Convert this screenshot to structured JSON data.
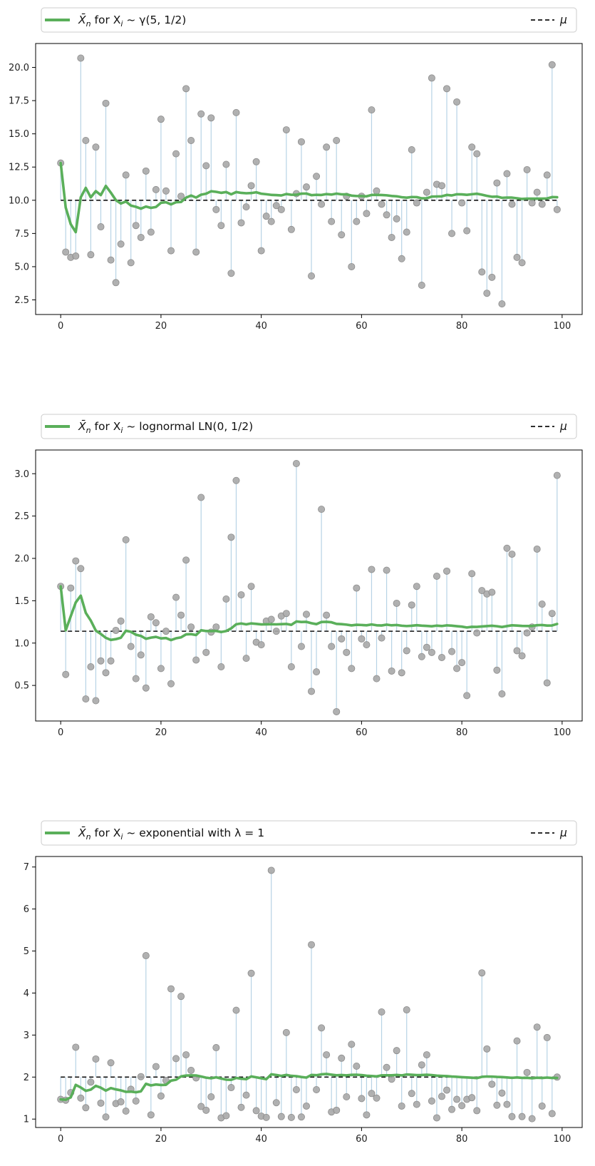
{
  "colors": {
    "mean_line": "#5aaf5a",
    "mu_line": "#111111",
    "points": "#a9a9a9",
    "points_edge": "#8c8c8c",
    "stems": "#b7d3e5",
    "axes": "#000000"
  },
  "chart_data": [
    {
      "type": "line",
      "title": "",
      "legend": {
        "mean_label_rest": " for X",
        "mean_label_dist": " ~ γ(5, 1/2)",
        "mu_label": "μ",
        "placement": "top"
      },
      "xlim": [
        -5,
        104
      ],
      "ylim": [
        1.4,
        21.8
      ],
      "xticks": [
        0,
        20,
        40,
        60,
        80,
        100
      ],
      "yticks": [
        2.5,
        5.0,
        7.5,
        10.0,
        12.5,
        15.0,
        17.5,
        20.0
      ],
      "ytick_labels": [
        "2.5",
        "5.0",
        "7.5",
        "10.0",
        "12.5",
        "15.0",
        "17.5",
        "20.0"
      ],
      "mu": 10.0,
      "samples": [
        12.8,
        6.1,
        5.7,
        5.8,
        20.7,
        14.5,
        5.9,
        14.0,
        8.0,
        17.3,
        5.5,
        3.8,
        6.7,
        11.9,
        5.3,
        8.1,
        7.2,
        12.2,
        7.6,
        10.8,
        16.1,
        10.7,
        6.2,
        13.5,
        10.3,
        18.4,
        14.5,
        6.1,
        16.5,
        12.6,
        16.2,
        9.3,
        8.1,
        12.7,
        4.5,
        16.6,
        8.3,
        9.5,
        11.1,
        12.9,
        6.2,
        8.8,
        8.4,
        9.6,
        9.3,
        15.3,
        7.8,
        10.5,
        14.4,
        11.0,
        4.3,
        11.8,
        9.7,
        14.0,
        8.4,
        14.5,
        7.4,
        10.3,
        5.0,
        8.4,
        10.3,
        9.0,
        16.8,
        10.7,
        9.7,
        8.9,
        7.2,
        8.6,
        5.6,
        7.6,
        13.8,
        9.8,
        3.6,
        10.6,
        19.2,
        11.2,
        11.1,
        18.4,
        7.5,
        17.4,
        9.8,
        7.7,
        14.0,
        13.5,
        4.6,
        3.0,
        4.2,
        11.3,
        2.2,
        12.0,
        9.7,
        5.7,
        5.3,
        12.3,
        9.8,
        10.6,
        9.7,
        11.9,
        20.2,
        9.3
      ]
    },
    {
      "type": "line",
      "title": "",
      "legend": {
        "mean_label_rest": " for X",
        "mean_label_dist": " ~ lognormal LN(0, 1/2)",
        "mu_label": "μ",
        "placement": "top"
      },
      "xlim": [
        -5,
        104
      ],
      "ylim": [
        0.08,
        3.28
      ],
      "xticks": [
        0,
        20,
        40,
        60,
        80,
        100
      ],
      "yticks": [
        0.5,
        1.0,
        1.5,
        2.0,
        2.5,
        3.0
      ],
      "ytick_labels": [
        "0.5",
        "1.0",
        "1.5",
        "2.0",
        "2.5",
        "3.0"
      ],
      "mu": 1.14,
      "samples": [
        1.67,
        0.63,
        1.65,
        1.97,
        1.88,
        0.34,
        0.72,
        0.32,
        0.79,
        0.65,
        0.79,
        1.15,
        1.26,
        2.22,
        0.96,
        0.58,
        0.86,
        0.47,
        1.31,
        1.24,
        0.7,
        1.14,
        0.52,
        1.54,
        1.33,
        1.98,
        1.19,
        0.8,
        2.72,
        0.89,
        1.13,
        1.19,
        0.72,
        1.52,
        2.25,
        2.92,
        1.57,
        0.82,
        1.67,
        1.01,
        0.98,
        1.26,
        1.28,
        1.14,
        1.32,
        1.35,
        0.72,
        3.12,
        0.96,
        1.34,
        0.43,
        0.66,
        2.58,
        1.33,
        0.96,
        0.19,
        1.05,
        0.89,
        0.7,
        1.65,
        1.05,
        0.98,
        1.87,
        0.58,
        1.06,
        1.86,
        0.67,
        1.47,
        0.65,
        0.91,
        1.45,
        1.67,
        0.84,
        0.95,
        0.89,
        1.79,
        0.83,
        1.85,
        0.9,
        0.7,
        0.77,
        0.38,
        1.82,
        1.12,
        1.62,
        1.58,
        1.6,
        0.68,
        0.4,
        2.12,
        2.05,
        0.91,
        0.85,
        1.12,
        1.19,
        2.11,
        1.46,
        0.53,
        1.35,
        2.98
      ]
    },
    {
      "type": "line",
      "title": "",
      "legend": {
        "mean_label_rest": " for X",
        "mean_label_dist": " ~ exponential with λ = 1",
        "mu_label": "μ",
        "placement": "top"
      },
      "xlim": [
        -5,
        104
      ],
      "ylim": [
        0.8,
        7.25
      ],
      "xticks": [
        0,
        20,
        40,
        60,
        80,
        100
      ],
      "yticks": [
        1,
        2,
        3,
        4,
        5,
        6,
        7
      ],
      "ytick_labels": [
        "1",
        "2",
        "3",
        "4",
        "5",
        "6",
        "7"
      ],
      "mu": 2.0,
      "samples": [
        1.47,
        1.45,
        1.63,
        2.71,
        1.5,
        1.27,
        1.88,
        2.43,
        1.38,
        1.05,
        2.34,
        1.37,
        1.41,
        1.19,
        1.71,
        1.43,
        2.01,
        4.89,
        1.1,
        2.25,
        1.55,
        1.92,
        4.1,
        2.44,
        3.92,
        2.53,
        2.16,
        1.98,
        1.3,
        1.21,
        1.53,
        2.7,
        1.03,
        1.08,
        1.75,
        3.59,
        1.28,
        1.57,
        4.47,
        1.2,
        1.07,
        1.04,
        6.92,
        1.39,
        1.06,
        3.06,
        1.04,
        1.7,
        1.05,
        1.31,
        5.15,
        1.7,
        3.17,
        2.53,
        1.17,
        1.21,
        2.45,
        1.53,
        2.78,
        2.26,
        1.49,
        1.1,
        1.61,
        1.5,
        3.55,
        2.23,
        1.95,
        2.63,
        1.31,
        3.6,
        1.61,
        1.35,
        2.29,
        2.53,
        1.43,
        1.03,
        1.54,
        1.69,
        1.23,
        1.47,
        1.32,
        1.47,
        1.51,
        1.2,
        4.48,
        2.67,
        1.83,
        1.33,
        1.62,
        1.35,
        1.06,
        2.86,
        1.06,
        2.11,
        1.01,
        3.19,
        1.31,
        2.94,
        1.13,
        2.0
      ]
    }
  ]
}
